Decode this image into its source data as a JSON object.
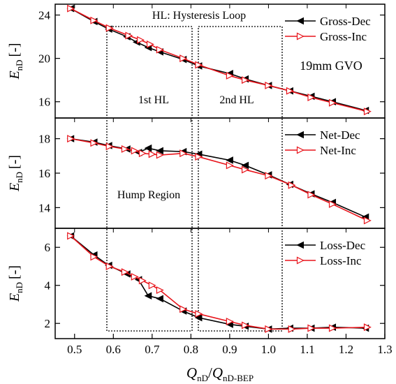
{
  "colors": {
    "dec": "#000000",
    "inc": "#e8141b",
    "frame": "#000000"
  },
  "chart_data": {
    "type": "line",
    "x_axis": {
      "label_main": "Q",
      "label_main_sub": "nD",
      "label_sep": "/",
      "label_den": "Q",
      "label_den_sub": "nD-BEP",
      "range": [
        0.45,
        1.3
      ],
      "ticks": [
        "0.5",
        "0.6",
        "0.7",
        "0.8",
        "0.9",
        "1.0",
        "1.1",
        "1.2",
        "1.3"
      ]
    },
    "annotations": {
      "hysteresis_title": "HL: Hysteresis Loop",
      "first_hl": "1st HL",
      "second_hl": "2nd HL",
      "hump_region": "Hump Region",
      "gvo": "19mm GVO"
    },
    "panels": [
      {
        "ylabel_main": "E",
        "ylabel_sub": "nD",
        "ylabel_unit": "[-]",
        "ylim": [
          14.5,
          25
        ],
        "yticks": [
          "16",
          "20",
          "24"
        ],
        "legend": [
          "Gross-Dec",
          "Gross-Inc"
        ],
        "series": [
          {
            "name": "Gross-Dec",
            "marker": "triangle-left-filled",
            "x": [
              0.49,
              0.55,
              0.588,
              0.635,
              0.66,
              0.69,
              0.72,
              0.78,
              0.82,
              0.9,
              0.94,
              1.0,
              1.055,
              1.11,
              1.165,
              1.25
            ],
            "y": [
              24.6,
              23.4,
              22.7,
              22.0,
              21.5,
              21.0,
              20.6,
              19.9,
              19.3,
              18.6,
              18.1,
              17.5,
              17.0,
              16.5,
              16.0,
              15.2
            ]
          },
          {
            "name": "Gross-Inc",
            "marker": "triangle-right-open",
            "x": [
              0.49,
              0.55,
              0.59,
              0.64,
              0.67,
              0.695,
              0.72,
              0.78,
              0.82,
              0.9,
              0.94,
              1.0,
              1.055,
              1.11,
              1.165,
              1.255
            ],
            "y": [
              24.6,
              23.5,
              22.8,
              22.1,
              21.7,
              21.3,
              20.8,
              20.0,
              19.4,
              18.4,
              18.0,
              17.5,
              17.0,
              16.4,
              15.9,
              15.1
            ]
          }
        ]
      },
      {
        "ylabel_main": "E",
        "ylabel_sub": "nD",
        "ylabel_unit": "[-]",
        "ylim": [
          12.8,
          19.2
        ],
        "yticks": [
          "14",
          "16",
          "18"
        ],
        "legend": [
          "Net-Dec",
          "Net-Inc"
        ],
        "series": [
          {
            "name": "Net-Dec",
            "marker": "triangle-left-filled",
            "x": [
              0.49,
              0.55,
              0.588,
              0.635,
              0.665,
              0.69,
              0.72,
              0.78,
              0.82,
              0.9,
              0.94,
              1.0,
              1.055,
              1.11,
              1.165,
              1.25
            ],
            "y": [
              18.0,
              17.8,
              17.6,
              17.4,
              17.2,
              17.45,
              17.3,
              17.25,
              17.1,
              16.75,
              16.45,
              15.9,
              15.35,
              14.8,
              14.3,
              13.45
            ]
          },
          {
            "name": "Net-Inc",
            "marker": "triangle-right-open",
            "x": [
              0.49,
              0.55,
              0.59,
              0.63,
              0.655,
              0.675,
              0.7,
              0.72,
              0.78,
              0.82,
              0.9,
              0.94,
              1.0,
              1.06,
              1.11,
              1.165,
              1.255
            ],
            "y": [
              18.0,
              17.75,
              17.55,
              17.4,
              17.3,
              17.15,
              17.1,
              17.05,
              17.15,
              16.95,
              16.45,
              16.2,
              15.85,
              15.3,
              14.75,
              14.2,
              13.25
            ]
          }
        ]
      },
      {
        "ylabel_main": "E",
        "ylabel_sub": "nD",
        "ylabel_unit": "[-]",
        "ylim": [
          1.2,
          7
        ],
        "yticks": [
          "2",
          "4",
          "6"
        ],
        "legend": [
          "Loss-Dec",
          "Loss-Inc"
        ],
        "series": [
          {
            "name": "Loss-Dec",
            "marker": "triangle-left-filled",
            "x": [
              0.49,
              0.55,
              0.588,
              0.635,
              0.665,
              0.69,
              0.72,
              0.78,
              0.82,
              0.9,
              0.94,
              1.0,
              1.055,
              1.11,
              1.165,
              1.25
            ],
            "y": [
              6.6,
              5.6,
              5.05,
              4.6,
              4.3,
              3.45,
              3.3,
              2.65,
              2.3,
              1.95,
              1.85,
              1.7,
              1.75,
              1.75,
              1.8,
              1.75
            ]
          },
          {
            "name": "Loss-Inc",
            "marker": "triangle-right-open",
            "x": [
              0.49,
              0.55,
              0.59,
              0.63,
              0.655,
              0.675,
              0.7,
              0.72,
              0.78,
              0.82,
              0.9,
              0.94,
              1.0,
              1.06,
              1.11,
              1.165,
              1.255
            ],
            "y": [
              6.6,
              5.5,
              5.0,
              4.7,
              4.45,
              4.25,
              4.0,
              3.75,
              2.75,
              2.5,
              2.1,
              1.9,
              1.7,
              1.7,
              1.75,
              1.75,
              1.8
            ]
          }
        ]
      }
    ]
  }
}
